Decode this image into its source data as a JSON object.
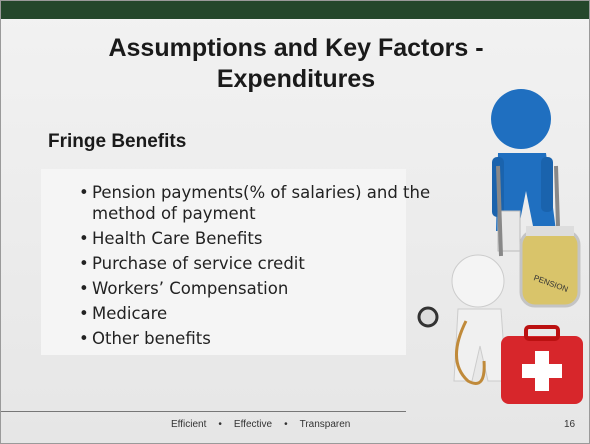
{
  "header": {
    "title_lines": [
      "Assumptions and Key Factors -",
      "Expenditures"
    ]
  },
  "section": {
    "heading": "Fringe Benefits",
    "bullets": [
      "Pension payments(% of salaries) and the method of payment",
      "Health Care Benefits",
      "Purchase of service credit",
      "Workers’ Compensation",
      "Medicare",
      "Other benefits"
    ]
  },
  "footer": {
    "items": [
      "Efficient",
      "Effective",
      "Transparen"
    ],
    "page_number": "16"
  },
  "illustration": {
    "jar_label": "PENSION"
  }
}
